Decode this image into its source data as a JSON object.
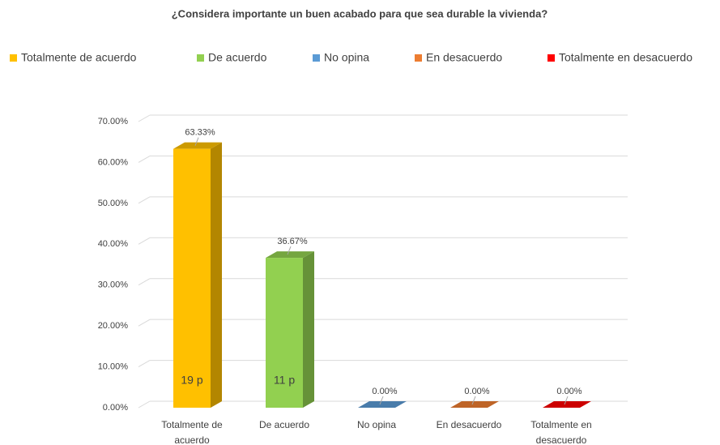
{
  "chart_data": {
    "type": "bar",
    "title": "¿Considera importante un buen acabado para que sea durable la vivienda?",
    "categories": [
      "Totalmente de acuerdo",
      "De acuerdo",
      "No opina",
      "En desacuerdo",
      "Totalmente en desacuerdo"
    ],
    "series": [
      {
        "name": "Totalmente de acuerdo",
        "color": "#ffc000"
      },
      {
        "name": "De acuerdo",
        "color": "#92d050"
      },
      {
        "name": "No opina",
        "color": "#5b9bd5"
      },
      {
        "name": "En desacuerdo",
        "color": "#ed7d31"
      },
      {
        "name": "Totalmente en desacuerdo",
        "color": "#ff0000"
      }
    ],
    "values": [
      63.33,
      36.67,
      0,
      0,
      0
    ],
    "value_labels": [
      "63.33%",
      "36.67%",
      "0.00%",
      "0.00%",
      "0.00%"
    ],
    "inner_labels": [
      "19 p",
      "11 p"
    ],
    "ylim": [
      0,
      70
    ],
    "yticks": [
      {
        "value": 0,
        "label": "0.00%"
      },
      {
        "value": 10,
        "label": "10.00%"
      },
      {
        "value": 20,
        "label": "20.00%"
      },
      {
        "value": 30,
        "label": "30.00%"
      },
      {
        "value": 40,
        "label": "40.00%"
      },
      {
        "value": 50,
        "label": "50.00%"
      },
      {
        "value": 60,
        "label": "60.00%"
      },
      {
        "value": 70,
        "label": "70.00%"
      }
    ],
    "grid": true,
    "legend": "top"
  }
}
